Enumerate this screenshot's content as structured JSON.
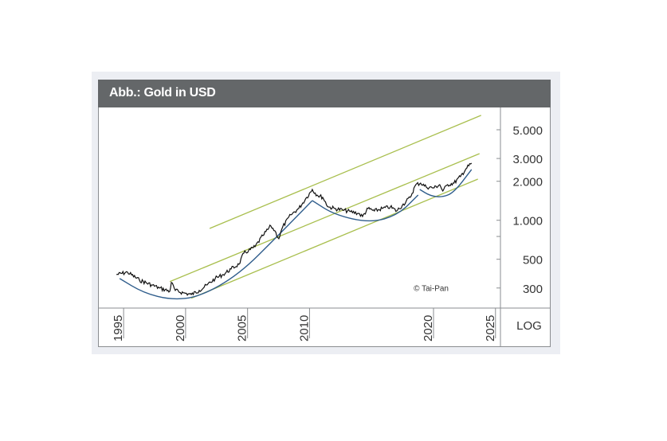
{
  "chart_data": {
    "type": "line",
    "title": "Abb.: Gold in USD",
    "xlabel": "",
    "ylabel": "",
    "yscale_label": "LOG",
    "yscale": "log",
    "xlim": [
      1993.0,
      2025.4
    ],
    "ylim": [
      210,
      7430
    ],
    "grid": false,
    "x_ticks": [
      {
        "value": 1995,
        "label": "1995"
      },
      {
        "value": 2000,
        "label": "2000"
      },
      {
        "value": 2005,
        "label": "2005"
      },
      {
        "value": 2010,
        "label": "2010"
      },
      {
        "value": 2020,
        "label": "2020"
      },
      {
        "value": 2025,
        "label": "2025"
      }
    ],
    "y_ticks": [
      {
        "value": 5000,
        "label": "5.000"
      },
      {
        "value": 3000,
        "label": "3.000"
      },
      {
        "value": 2000,
        "label": "2.000"
      },
      {
        "value": 1000,
        "label": "1.000"
      },
      {
        "value": 750,
        "label": ""
      },
      {
        "value": 500,
        "label": "500"
      },
      {
        "value": 300,
        "label": "300"
      }
    ],
    "series": [
      {
        "name": "Gold in USD",
        "color": "#111111",
        "x": [
          1994.42,
          1995.32,
          1996.28,
          1997.25,
          1997.89,
          1998.73,
          1998.85,
          1999.17,
          1999.82,
          2000.46,
          2001.1,
          2001.74,
          2002.39,
          2003.03,
          2003.67,
          2004.31,
          2004.7,
          2005.08,
          2005.6,
          2006.24,
          2006.88,
          2007.2,
          2007.52,
          2007.84,
          2008.49,
          2009.13,
          2009.77,
          2010.22,
          2010.61,
          2011.06,
          2011.51,
          2012.02,
          2012.66,
          2013.3,
          2013.95,
          2014.27,
          2014.72,
          2015.23,
          2015.87,
          2016.52,
          2017.03,
          2017.48,
          2018.12,
          2018.57,
          2018.96,
          2019.41,
          2020.05,
          2020.5,
          2020.75,
          2021.14,
          2021.65,
          2022.17,
          2022.62,
          2023.07
        ],
        "y": [
          381,
          397,
          345,
          317,
          300,
          283,
          331,
          287,
          275,
          267,
          287,
          317,
          355,
          381,
          421,
          458,
          558,
          582,
          625,
          762,
          904,
          830,
          720,
          891,
          1102,
          1233,
          1503,
          1730,
          1567,
          1503,
          1268,
          1233,
          1199,
          1165,
          1132,
          1069,
          1233,
          1180,
          1233,
          1268,
          1180,
          1303,
          1503,
          1884,
          1937,
          1806,
          1782,
          1884,
          1683,
          1884,
          1937,
          2173,
          2500,
          2761
        ]
      }
    ],
    "trend_channel": [
      {
        "name": "upper",
        "color": "#a9bf4e",
        "x": [
          2001.94,
          2023.84
        ],
        "y": [
          865,
          6460
        ]
      },
      {
        "name": "middle",
        "color": "#a9bf4e",
        "x": [
          1998.73,
          2023.71
        ],
        "y": [
          336,
          3270
        ]
      },
      {
        "name": "lower",
        "color": "#a9bf4e",
        "x": [
          2000.46,
          2023.58
        ],
        "y": [
          250,
          2080
        ]
      }
    ],
    "arcs": [
      {
        "name": "arc-1",
        "color": "#2f5d8c",
        "x": [
          1994.68,
          1996.61,
          1998.85,
          2001.1,
          2004.31,
          2007.52,
          2010.22
        ],
        "y": [
          355,
          275,
          243,
          256,
          381,
          773,
          1419
        ]
      },
      {
        "name": "arc-2",
        "color": "#2f5d8c",
        "x": [
          2010.22,
          2012.02,
          2014.91,
          2017.16,
          2018.76
        ],
        "y": [
          1419,
          1102,
          955,
          1102,
          1567
        ]
      },
      {
        "name": "arc-3",
        "color": "#2f5d8c",
        "x": [
          2018.89,
          2019.73,
          2020.69,
          2021.65,
          2023.07
        ],
        "y": [
          1730,
          1545,
          1503,
          1637,
          2466
        ]
      }
    ],
    "annotations": [
      {
        "text": "© Tai-Pan",
        "x": 2018.4,
        "y": 285
      }
    ]
  }
}
